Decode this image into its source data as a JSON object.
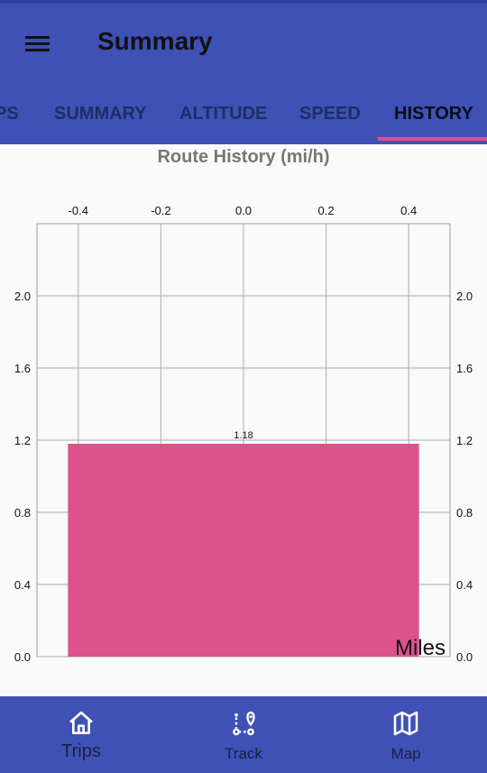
{
  "app": {
    "title": "Summary"
  },
  "tabs": [
    {
      "label": "PS"
    },
    {
      "label": "SUMMARY"
    },
    {
      "label": "ALTITUDE"
    },
    {
      "label": "SPEED"
    },
    {
      "label": "HISTORY"
    }
  ],
  "active_tab": "HISTORY",
  "colors": {
    "primary": "#3f51b5",
    "accent": "#e44d88",
    "bar": "#dc528a"
  },
  "chart_data": {
    "type": "bar",
    "title": "Route History (mi/h)",
    "x": [
      0.0
    ],
    "values": [
      1.18
    ],
    "data_labels": [
      "1.18"
    ],
    "xlim": [
      -0.5,
      0.5
    ],
    "ylim": [
      0.0,
      2.4
    ],
    "x_ticks": [
      "-0.4",
      "-0.2",
      "0.0",
      "0.2",
      "0.4"
    ],
    "y_ticks": [
      "0.0",
      "0.4",
      "0.8",
      "1.2",
      "1.6",
      "2.0"
    ],
    "x_axis_position": "top",
    "y_axis_position": "both",
    "grid": true,
    "legend_label": "Miles",
    "legend_position": "bottom-right"
  },
  "bottom_nav": [
    {
      "label": "Trips",
      "icon": "home-icon"
    },
    {
      "label": "Track",
      "icon": "route-icon"
    },
    {
      "label": "Map",
      "icon": "map-icon"
    }
  ]
}
